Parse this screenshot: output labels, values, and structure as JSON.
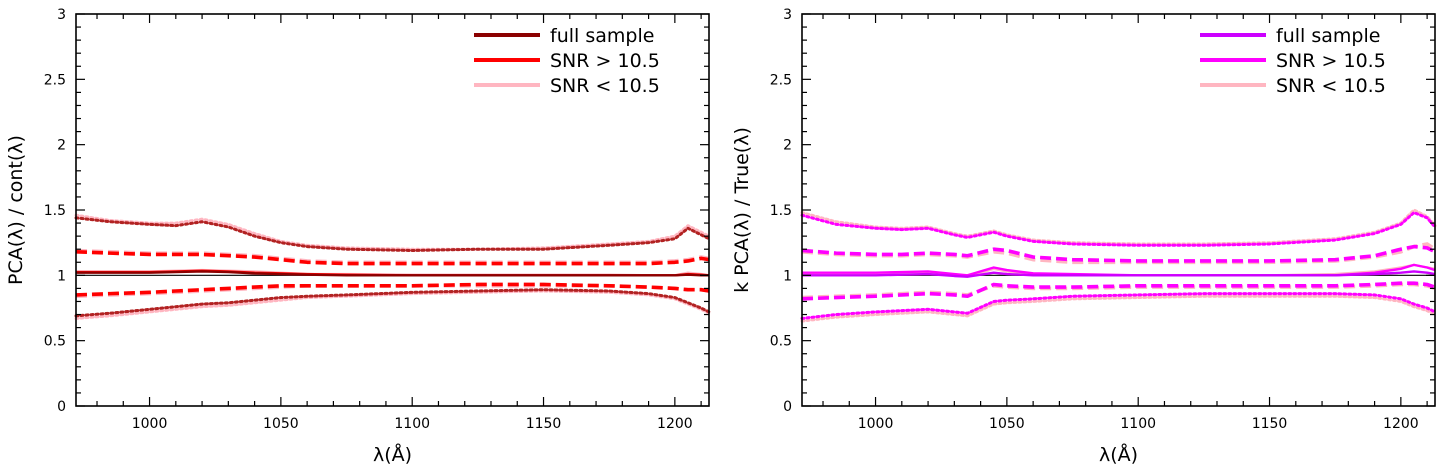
{
  "chart_data": [
    {
      "type": "line",
      "panel": "left",
      "xlabel": "λ(Å)",
      "ylabel": "PCA(λ) / cont(λ)",
      "xlim": [
        972,
        1213
      ],
      "ylim": [
        0,
        3
      ],
      "xticks": [
        1000,
        1050,
        1100,
        1150,
        1200
      ],
      "xtick_labels": [
        "1000",
        "1050",
        "1100",
        "1150",
        "1200"
      ],
      "yticks": [
        0,
        0.5,
        1,
        1.5,
        2,
        2.5,
        3
      ],
      "ytick_labels": [
        "0",
        "0.5",
        "1",
        "1.5",
        "2",
        "2.5",
        "3"
      ],
      "legend_position": "top-right",
      "legend": [
        {
          "label": "full sample",
          "color": "#8b0000"
        },
        {
          "label": "SNR > 10.5",
          "color": "#ff0000"
        },
        {
          "label": "SNR < 10.5",
          "color": "#ffb6c1"
        }
      ],
      "reference_line": 1.0,
      "x": [
        972,
        985,
        1000,
        1010,
        1020,
        1030,
        1040,
        1050,
        1060,
        1075,
        1100,
        1125,
        1150,
        1175,
        1190,
        1200,
        1205,
        1210,
        1213
      ],
      "series": [
        {
          "name": "SNR < 10.5 mean",
          "style": "solid",
          "color": "#ffb6c1",
          "values": [
            1.03,
            1.03,
            1.03,
            1.035,
            1.04,
            1.035,
            1.03,
            1.02,
            1.01,
            1.01,
            1.005,
            1.005,
            1.005,
            1.005,
            1.0,
            1.0,
            1.02,
            1.01,
            1.0
          ]
        },
        {
          "name": "SNR > 10.5 mean",
          "style": "solid",
          "color": "#ff0000",
          "values": [
            1.025,
            1.025,
            1.025,
            1.03,
            1.035,
            1.03,
            1.02,
            1.015,
            1.01,
            1.005,
            1.0,
            1.0,
            1.0,
            1.0,
            1.0,
            1.0,
            1.01,
            1.005,
            1.0
          ]
        },
        {
          "name": "full sample mean",
          "style": "solid",
          "color": "#8b0000",
          "values": [
            1.02,
            1.02,
            1.02,
            1.025,
            1.03,
            1.025,
            1.015,
            1.01,
            1.005,
            1.0,
            1.0,
            1.0,
            1.0,
            1.0,
            1.0,
            1.0,
            1.005,
            1.0,
            1.0
          ]
        },
        {
          "name": "SNR < 10.5 upper 1σ",
          "style": "dashed",
          "color": "#ffb6c1",
          "values": [
            1.19,
            1.18,
            1.17,
            1.17,
            1.17,
            1.16,
            1.15,
            1.13,
            1.11,
            1.1,
            1.1,
            1.1,
            1.1,
            1.1,
            1.1,
            1.11,
            1.12,
            1.14,
            1.13
          ]
        },
        {
          "name": "SNR > 10.5 upper 1σ",
          "style": "dashed",
          "color": "#ff0000",
          "values": [
            1.18,
            1.17,
            1.16,
            1.16,
            1.16,
            1.15,
            1.14,
            1.12,
            1.1,
            1.09,
            1.09,
            1.09,
            1.09,
            1.09,
            1.09,
            1.1,
            1.11,
            1.13,
            1.12
          ]
        },
        {
          "name": "SNR < 10.5 lower 1σ",
          "style": "dashed",
          "color": "#ffb6c1",
          "values": [
            0.84,
            0.85,
            0.86,
            0.87,
            0.88,
            0.89,
            0.9,
            0.91,
            0.92,
            0.92,
            0.92,
            0.92,
            0.92,
            0.92,
            0.91,
            0.9,
            0.89,
            0.89,
            0.88
          ]
        },
        {
          "name": "SNR > 10.5 lower 1σ",
          "style": "dashed",
          "color": "#ff0000",
          "values": [
            0.85,
            0.86,
            0.87,
            0.88,
            0.89,
            0.9,
            0.91,
            0.92,
            0.92,
            0.92,
            0.92,
            0.93,
            0.93,
            0.92,
            0.91,
            0.9,
            0.89,
            0.89,
            0.88
          ]
        },
        {
          "name": "SNR < 10.5 upper 2σ",
          "style": "dotted",
          "color": "#ffb6c1",
          "values": [
            1.46,
            1.42,
            1.4,
            1.4,
            1.43,
            1.39,
            1.32,
            1.26,
            1.23,
            1.21,
            1.2,
            1.2,
            1.21,
            1.24,
            1.26,
            1.3,
            1.38,
            1.33,
            1.3
          ]
        },
        {
          "name": "SNR > 10.5 upper 2σ",
          "style": "dotted",
          "color": "#b22222",
          "values": [
            1.44,
            1.41,
            1.39,
            1.38,
            1.41,
            1.37,
            1.3,
            1.25,
            1.22,
            1.2,
            1.19,
            1.2,
            1.2,
            1.23,
            1.25,
            1.28,
            1.36,
            1.31,
            1.28
          ]
        },
        {
          "name": "SNR < 10.5 lower 2σ",
          "style": "dotted",
          "color": "#ffb6c1",
          "values": [
            0.67,
            0.69,
            0.72,
            0.74,
            0.76,
            0.77,
            0.79,
            0.81,
            0.83,
            0.84,
            0.86,
            0.87,
            0.88,
            0.87,
            0.85,
            0.82,
            0.78,
            0.74,
            0.71
          ]
        },
        {
          "name": "SNR > 10.5 lower 2σ",
          "style": "dotted",
          "color": "#b22222",
          "values": [
            0.69,
            0.71,
            0.74,
            0.76,
            0.78,
            0.79,
            0.81,
            0.83,
            0.84,
            0.85,
            0.87,
            0.88,
            0.89,
            0.88,
            0.86,
            0.83,
            0.79,
            0.75,
            0.72
          ]
        }
      ]
    },
    {
      "type": "line",
      "panel": "right",
      "xlabel": "λ(Å)",
      "ylabel": "k  PCA(λ) / True(λ)",
      "xlim": [
        972,
        1213
      ],
      "ylim": [
        0,
        3
      ],
      "xticks": [
        1000,
        1050,
        1100,
        1150,
        1200
      ],
      "xtick_labels": [
        "1000",
        "1050",
        "1100",
        "1150",
        "1200"
      ],
      "yticks": [
        0,
        0.5,
        1,
        1.5,
        2,
        2.5,
        3
      ],
      "ytick_labels": [
        "0",
        "0.5",
        "1",
        "1.5",
        "2",
        "2.5",
        "3"
      ],
      "legend_position": "top-right",
      "legend": [
        {
          "label": "full sample",
          "color": "#cc00ff"
        },
        {
          "label": "SNR > 10.5",
          "color": "#ff00ff"
        },
        {
          "label": "SNR < 10.5",
          "color": "#ffb6c1"
        }
      ],
      "reference_line": 1.0,
      "x": [
        972,
        985,
        1000,
        1010,
        1020,
        1030,
        1035,
        1045,
        1050,
        1060,
        1075,
        1100,
        1125,
        1150,
        1175,
        1190,
        1200,
        1205,
        1210,
        1213
      ],
      "series": [
        {
          "name": "SNR < 10.5 mean",
          "style": "solid",
          "color": "#ffb6c1",
          "values": [
            1.01,
            1.01,
            1.01,
            1.02,
            1.02,
            1.0,
            0.99,
            1.05,
            1.03,
            1.01,
            1.0,
            1.0,
            1.0,
            1.0,
            1.01,
            1.03,
            1.06,
            1.08,
            1.06,
            1.05
          ]
        },
        {
          "name": "SNR > 10.5 mean",
          "style": "solid",
          "color": "#ff00ff",
          "values": [
            1.02,
            1.02,
            1.02,
            1.025,
            1.03,
            1.01,
            1.0,
            1.06,
            1.04,
            1.015,
            1.01,
            1.0,
            1.0,
            1.0,
            1.0,
            1.02,
            1.05,
            1.08,
            1.06,
            1.04
          ]
        },
        {
          "name": "full sample mean",
          "style": "solid",
          "color": "#cc00ff",
          "values": [
            1.0,
            1.0,
            1.0,
            1.005,
            1.01,
            0.995,
            0.99,
            1.02,
            1.01,
            1.0,
            1.0,
            1.0,
            1.0,
            1.0,
            1.0,
            1.01,
            1.02,
            1.03,
            1.02,
            1.01
          ]
        },
        {
          "name": "SNR < 10.5 upper 1σ",
          "style": "dashed",
          "color": "#ffb6c1",
          "values": [
            1.18,
            1.16,
            1.15,
            1.15,
            1.16,
            1.15,
            1.14,
            1.18,
            1.17,
            1.12,
            1.1,
            1.1,
            1.1,
            1.1,
            1.11,
            1.14,
            1.18,
            1.22,
            1.24,
            1.2
          ]
        },
        {
          "name": "SNR > 10.5 upper 1σ",
          "style": "dashed",
          "color": "#ff00ff",
          "values": [
            1.19,
            1.17,
            1.16,
            1.16,
            1.17,
            1.16,
            1.15,
            1.2,
            1.19,
            1.14,
            1.12,
            1.11,
            1.11,
            1.11,
            1.12,
            1.15,
            1.2,
            1.22,
            1.21,
            1.18
          ]
        },
        {
          "name": "SNR < 10.5 lower 1σ",
          "style": "dashed",
          "color": "#ffb6c1",
          "values": [
            0.83,
            0.84,
            0.85,
            0.86,
            0.87,
            0.86,
            0.85,
            0.92,
            0.91,
            0.9,
            0.9,
            0.91,
            0.91,
            0.91,
            0.91,
            0.92,
            0.93,
            0.93,
            0.92,
            0.9
          ]
        },
        {
          "name": "SNR > 10.5 lower 1σ",
          "style": "dashed",
          "color": "#ff00ff",
          "values": [
            0.82,
            0.83,
            0.84,
            0.85,
            0.86,
            0.85,
            0.84,
            0.93,
            0.92,
            0.91,
            0.91,
            0.92,
            0.92,
            0.92,
            0.92,
            0.93,
            0.94,
            0.94,
            0.93,
            0.91
          ]
        },
        {
          "name": "SNR < 10.5 upper 2σ",
          "style": "dotted",
          "color": "#ffb6c1",
          "values": [
            1.48,
            1.41,
            1.37,
            1.36,
            1.37,
            1.32,
            1.3,
            1.34,
            1.31,
            1.27,
            1.25,
            1.24,
            1.24,
            1.25,
            1.28,
            1.33,
            1.4,
            1.5,
            1.45,
            1.38
          ]
        },
        {
          "name": "SNR > 10.5 upper 2σ",
          "style": "dotted",
          "color": "#ff00ff",
          "values": [
            1.46,
            1.39,
            1.36,
            1.35,
            1.36,
            1.31,
            1.29,
            1.33,
            1.3,
            1.26,
            1.24,
            1.23,
            1.23,
            1.24,
            1.27,
            1.32,
            1.39,
            1.48,
            1.44,
            1.37
          ]
        },
        {
          "name": "SNR < 10.5 lower 2σ",
          "style": "dotted",
          "color": "#ffb6c1",
          "values": [
            0.65,
            0.68,
            0.7,
            0.71,
            0.72,
            0.7,
            0.69,
            0.78,
            0.79,
            0.8,
            0.82,
            0.83,
            0.84,
            0.84,
            0.84,
            0.83,
            0.8,
            0.76,
            0.73,
            0.7
          ]
        },
        {
          "name": "SNR > 10.5 lower 2σ",
          "style": "dotted",
          "color": "#ff00ff",
          "values": [
            0.67,
            0.7,
            0.72,
            0.73,
            0.74,
            0.72,
            0.71,
            0.8,
            0.81,
            0.82,
            0.84,
            0.85,
            0.86,
            0.86,
            0.86,
            0.85,
            0.82,
            0.78,
            0.75,
            0.72
          ]
        }
      ]
    }
  ]
}
